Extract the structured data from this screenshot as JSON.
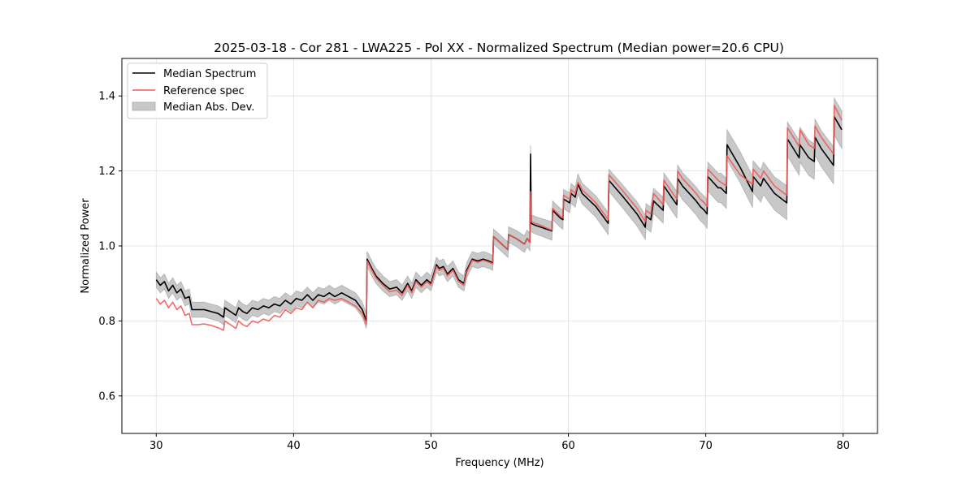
{
  "chart_data": {
    "type": "line",
    "title": "2025-03-18 - Cor 281 - LWA225 - Pol XX - Normalized Spectrum (Median power=20.6 CPU)",
    "xlabel": "Frequency (MHz)",
    "ylabel": "Normalized Power",
    "xlim": [
      27.5,
      82.5
    ],
    "ylim": [
      0.5,
      1.5
    ],
    "xticks": [
      30,
      40,
      50,
      60,
      70,
      80
    ],
    "xtick_labels": [
      "30",
      "40",
      "50",
      "60",
      "70",
      "80"
    ],
    "yticks": [
      0.6,
      0.8,
      1.0,
      1.2,
      1.4
    ],
    "ytick_labels": [
      "0.6",
      "0.8",
      "1.0",
      "1.2",
      "1.4"
    ],
    "grid": true,
    "legend": {
      "placement": "top-left",
      "entries": [
        {
          "label": "Median Spectrum",
          "kind": "line",
          "color": "#000000"
        },
        {
          "label": "Reference spec",
          "kind": "line",
          "color": "#f05a5a"
        },
        {
          "label": "Median Abs. Dev.",
          "kind": "band",
          "color": "#c8c8c8"
        }
      ]
    },
    "series": [
      {
        "name": "Median Spectrum",
        "color": "#000000",
        "x": [
          30.0,
          30.3,
          30.6,
          30.9,
          31.2,
          31.5,
          31.8,
          32.1,
          32.4,
          32.6,
          33.0,
          33.5,
          34.0,
          34.5,
          34.9,
          35.0,
          35.4,
          35.8,
          36.0,
          36.3,
          36.6,
          37.0,
          37.4,
          37.8,
          38.2,
          38.6,
          39.0,
          39.4,
          39.8,
          40.2,
          40.6,
          41.0,
          41.4,
          41.8,
          42.2,
          42.6,
          43.0,
          43.5,
          44.0,
          44.5,
          45.0,
          45.3,
          45.35,
          45.7,
          46.0,
          46.5,
          47.0,
          47.5,
          47.9,
          48.3,
          48.6,
          48.9,
          49.3,
          49.7,
          50.0,
          50.4,
          50.6,
          50.9,
          51.2,
          51.6,
          52.0,
          52.4,
          52.6,
          53.0,
          53.4,
          53.8,
          54.2,
          54.5,
          54.55,
          55.0,
          55.6,
          55.65,
          56.2,
          56.8,
          57.0,
          57.2,
          57.25,
          57.3,
          57.6,
          58.0,
          58.4,
          58.8,
          58.85,
          59.4,
          59.6,
          59.65,
          60.1,
          60.2,
          60.5,
          60.7,
          61.0,
          62.0,
          62.9,
          62.95,
          64.0,
          65.0,
          65.6,
          65.65,
          66.0,
          66.2,
          66.9,
          66.95,
          67.6,
          67.9,
          67.95,
          68.3,
          69.3,
          69.6,
          69.9,
          70.1,
          70.15,
          70.9,
          71.1,
          71.5,
          71.55,
          72.5,
          73.4,
          73.45,
          74.0,
          74.2,
          75.0,
          75.9,
          75.95,
          76.8,
          76.85,
          77.5,
          77.9,
          77.95,
          78.4,
          79.3,
          79.35,
          79.9
        ],
        "y": [
          0.91,
          0.895,
          0.905,
          0.88,
          0.895,
          0.875,
          0.885,
          0.86,
          0.865,
          0.83,
          0.83,
          0.83,
          0.825,
          0.82,
          0.81,
          0.835,
          0.825,
          0.815,
          0.835,
          0.825,
          0.82,
          0.835,
          0.83,
          0.84,
          0.835,
          0.845,
          0.84,
          0.855,
          0.845,
          0.86,
          0.855,
          0.87,
          0.855,
          0.87,
          0.865,
          0.875,
          0.865,
          0.875,
          0.865,
          0.855,
          0.83,
          0.8,
          0.965,
          0.94,
          0.92,
          0.9,
          0.885,
          0.89,
          0.875,
          0.9,
          0.88,
          0.91,
          0.895,
          0.91,
          0.9,
          0.95,
          0.94,
          0.945,
          0.925,
          0.94,
          0.91,
          0.9,
          0.935,
          0.965,
          0.96,
          0.965,
          0.96,
          0.955,
          1.025,
          1.01,
          0.99,
          1.03,
          1.02,
          1.005,
          1.02,
          1.01,
          1.245,
          1.06,
          1.055,
          1.05,
          1.045,
          1.04,
          1.095,
          1.075,
          1.07,
          1.125,
          1.115,
          1.14,
          1.13,
          1.165,
          1.14,
          1.105,
          1.06,
          1.175,
          1.13,
          1.085,
          1.05,
          1.08,
          1.07,
          1.12,
          1.095,
          1.16,
          1.125,
          1.11,
          1.18,
          1.16,
          1.12,
          1.105,
          1.095,
          1.085,
          1.185,
          1.155,
          1.155,
          1.14,
          1.27,
          1.21,
          1.145,
          1.185,
          1.16,
          1.18,
          1.14,
          1.115,
          1.285,
          1.235,
          1.27,
          1.235,
          1.225,
          1.29,
          1.26,
          1.215,
          1.345,
          1.31
        ]
      },
      {
        "name": "Reference spec",
        "color": "#f05a5a",
        "x": [
          30.0,
          30.3,
          30.6,
          30.9,
          31.2,
          31.5,
          31.8,
          32.1,
          32.4,
          32.6,
          33.0,
          33.5,
          34.0,
          34.5,
          34.9,
          35.0,
          35.4,
          35.8,
          36.0,
          36.3,
          36.6,
          37.0,
          37.4,
          37.8,
          38.2,
          38.6,
          39.0,
          39.4,
          39.8,
          40.2,
          40.6,
          41.0,
          41.4,
          41.8,
          42.2,
          42.6,
          43.0,
          43.5,
          44.0,
          44.5,
          45.0,
          45.3,
          45.35,
          45.7,
          46.0,
          46.5,
          47.0,
          47.5,
          47.9,
          48.3,
          48.6,
          48.9,
          49.3,
          49.7,
          50.0,
          50.4,
          50.6,
          50.9,
          51.2,
          51.6,
          52.0,
          52.4,
          52.6,
          53.0,
          53.4,
          53.8,
          54.2,
          54.5,
          54.55,
          55.0,
          55.6,
          55.65,
          56.2,
          56.8,
          57.0,
          57.2,
          57.25,
          57.3,
          57.6,
          58.0,
          58.4,
          58.8,
          58.85,
          59.4,
          59.6,
          59.65,
          60.1,
          60.2,
          60.5,
          60.7,
          61.0,
          62.0,
          62.9,
          62.95,
          64.0,
          65.0,
          65.6,
          65.65,
          66.0,
          66.2,
          66.9,
          66.95,
          67.6,
          67.9,
          67.95,
          68.3,
          69.3,
          69.6,
          69.9,
          70.1,
          70.15,
          70.9,
          71.1,
          71.5,
          71.55,
          72.5,
          73.4,
          73.45,
          74.0,
          74.2,
          75.0,
          75.9,
          75.95,
          76.8,
          76.85,
          77.5,
          77.9,
          77.95,
          78.4,
          79.3,
          79.35,
          79.9
        ],
        "y": [
          0.86,
          0.845,
          0.855,
          0.835,
          0.85,
          0.83,
          0.84,
          0.815,
          0.82,
          0.79,
          0.79,
          0.792,
          0.788,
          0.782,
          0.775,
          0.8,
          0.79,
          0.78,
          0.8,
          0.79,
          0.785,
          0.8,
          0.795,
          0.805,
          0.8,
          0.815,
          0.81,
          0.83,
          0.82,
          0.835,
          0.83,
          0.85,
          0.835,
          0.855,
          0.85,
          0.86,
          0.855,
          0.86,
          0.85,
          0.84,
          0.82,
          0.79,
          0.96,
          0.935,
          0.915,
          0.895,
          0.878,
          0.882,
          0.868,
          0.895,
          0.875,
          0.905,
          0.89,
          0.905,
          0.895,
          0.945,
          0.935,
          0.94,
          0.92,
          0.935,
          0.905,
          0.895,
          0.93,
          0.962,
          0.956,
          0.962,
          0.957,
          0.952,
          1.025,
          1.01,
          0.99,
          1.03,
          1.02,
          1.005,
          1.02,
          1.01,
          1.145,
          1.065,
          1.06,
          1.055,
          1.048,
          1.042,
          1.1,
          1.08,
          1.075,
          1.135,
          1.125,
          1.15,
          1.14,
          1.17,
          1.15,
          1.115,
          1.07,
          1.19,
          1.145,
          1.1,
          1.065,
          1.095,
          1.085,
          1.14,
          1.11,
          1.175,
          1.14,
          1.125,
          1.2,
          1.18,
          1.14,
          1.125,
          1.115,
          1.105,
          1.205,
          1.175,
          1.17,
          1.16,
          1.24,
          1.19,
          1.165,
          1.205,
          1.18,
          1.2,
          1.16,
          1.135,
          1.315,
          1.265,
          1.31,
          1.27,
          1.26,
          1.32,
          1.29,
          1.245,
          1.375,
          1.335
        ]
      }
    ],
    "band": {
      "name": "Median Abs. Dev.",
      "color": "#c8c8c8",
      "halfwidth_low_freq": 0.02,
      "halfwidth_high_freq": 0.05
    }
  }
}
